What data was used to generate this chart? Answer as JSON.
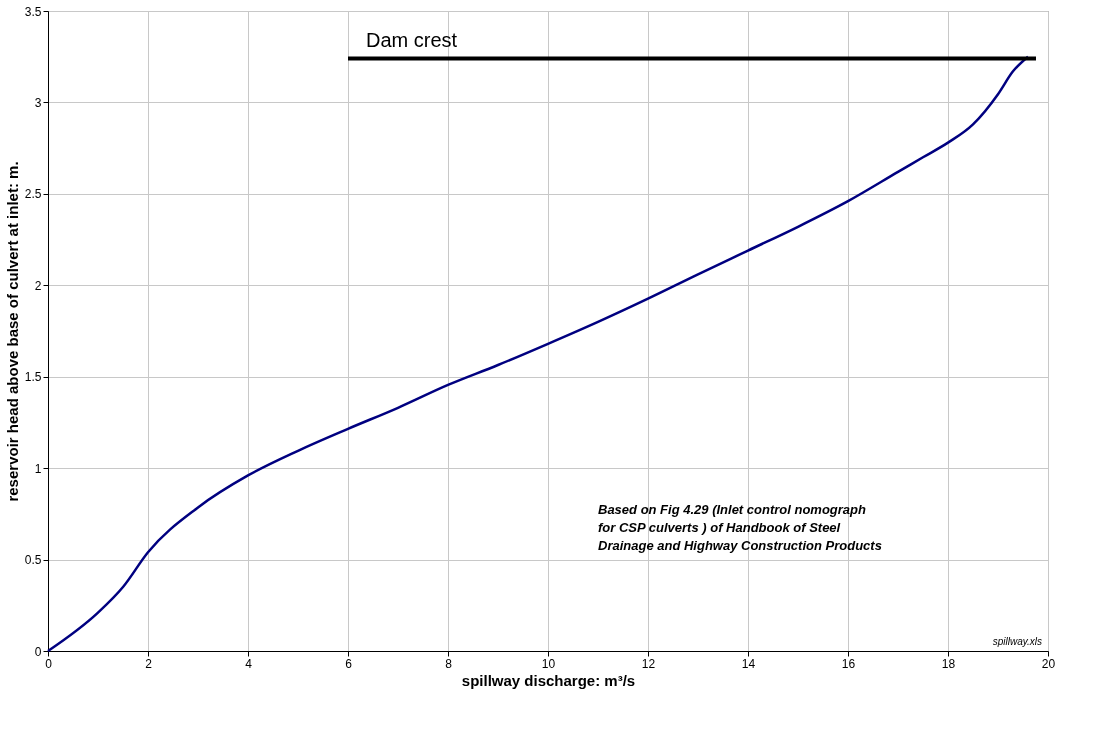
{
  "chart_data": {
    "type": "line",
    "xlabel": "spillway discharge: m³/s",
    "ylabel": "reservoir head above base of culvert at inlet: m.",
    "xlim": [
      0,
      20
    ],
    "ylim": [
      0,
      3.5
    ],
    "xticks": [
      0,
      2,
      4,
      6,
      8,
      10,
      12,
      14,
      16,
      18,
      20
    ],
    "yticks": [
      0,
      0.5,
      1,
      1.5,
      2,
      2.5,
      3,
      3.5
    ],
    "grid": true,
    "marker": "none",
    "line_style": "solid",
    "series": [
      {
        "color": "#000080",
        "x": [
          0,
          1,
          1.5,
          2,
          3,
          4,
          5,
          6,
          7,
          8,
          9,
          10,
          11,
          12,
          13,
          14,
          15,
          16,
          17,
          17.5,
          18,
          18.5,
          19,
          19.3,
          19.6
        ],
        "values": [
          0,
          0.21,
          0.35,
          0.54,
          0.785,
          0.96,
          1.095,
          1.215,
          1.33,
          1.455,
          1.564,
          1.68,
          1.8,
          1.927,
          2.06,
          2.19,
          2.32,
          2.46,
          2.62,
          2.7,
          2.78,
          2.88,
          3.045,
          3.17,
          3.25
        ]
      },
      {
        "color": "#000000",
        "x": [
          6,
          19.76
        ],
        "values": [
          3.24,
          3.24
        ]
      }
    ],
    "annotations": [
      {
        "text": "Dam crest",
        "x": 6,
        "y": 3.24
      },
      "Based on Fig 4.29 (Inlet control nomograph\nfor CSP culverts ) of  Handbook of Steel\nDrainage and Highway Construction Products",
      "spillway.xls"
    ]
  }
}
